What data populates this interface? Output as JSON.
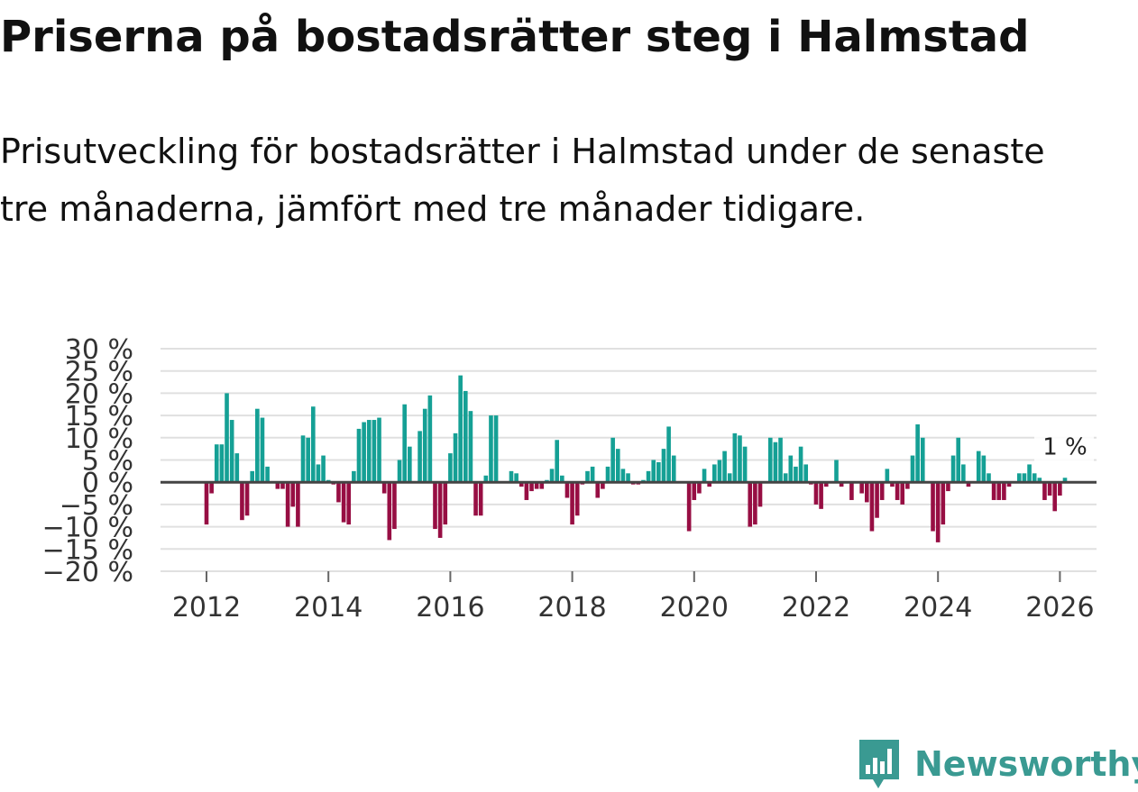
{
  "title": "Priserna på bostadsrätter steg i Halmstad",
  "subtitle": "Prisutveckling för bostadsrätter i Halmstad under de senaste tre månaderna, jämfört med tre månader tidigare.",
  "brand": {
    "name": "Newsworthy",
    "icon": "newsworthy-logo-icon"
  },
  "colors": {
    "positive": "#15a095",
    "negative": "#970e43",
    "grid": "#e0e0e0",
    "zero": "#444444",
    "brand": "#3a9a92"
  },
  "chart_data": {
    "type": "bar",
    "title": "Priserna på bostadsrätter steg i Halmstad",
    "xlabel": "",
    "ylabel": "",
    "x_unit": "year",
    "start": 2012.0,
    "step": 0.08333,
    "ylim": [
      -20,
      30
    ],
    "y_ticks": [
      30,
      25,
      20,
      15,
      10,
      5,
      0,
      -5,
      -10,
      -15,
      -20
    ],
    "y_tick_labels": [
      "30 %",
      "25 %",
      "20 %",
      "15 %",
      "10 %",
      "5 %",
      "0 %",
      "−5 %",
      "−10 %",
      "−15 %",
      "−20 %"
    ],
    "x_ticks": [
      2012,
      2014,
      2016,
      2018,
      2020,
      2022,
      2024,
      2026
    ],
    "x_tick_labels": [
      "2012",
      "2014",
      "2016",
      "2018",
      "2020",
      "2022",
      "2024",
      "2026"
    ],
    "last_label": "1 %",
    "values": [
      -9.5,
      -2.5,
      8.5,
      8.5,
      20,
      14,
      6.5,
      -8.5,
      -7.5,
      2.5,
      16.5,
      14.5,
      3.5,
      0,
      -1.5,
      -1.5,
      -10,
      -5.5,
      -10,
      10.5,
      10,
      17,
      4,
      6,
      0.5,
      -0.5,
      -4.5,
      -9,
      -9.5,
      2.5,
      12,
      13.5,
      14,
      14,
      14.5,
      -2.5,
      -13,
      -10.5,
      5,
      17.5,
      8,
      0,
      11.5,
      16.5,
      19.5,
      -10.5,
      -12.5,
      -9.5,
      6.5,
      11,
      24,
      20.5,
      16,
      -7.5,
      -7.5,
      1.5,
      15,
      15,
      0,
      0,
      2.5,
      2,
      -1,
      -4,
      -2,
      -1.5,
      -1.5,
      0.5,
      3,
      9.5,
      1.5,
      -3.5,
      -9.5,
      -7.5,
      -0.5,
      2.5,
      3.5,
      -3.5,
      -1.5,
      3.5,
      10,
      7.5,
      3,
      2,
      -0.5,
      -0.5,
      0.5,
      2.5,
      5,
      4.5,
      7.5,
      12.5,
      6,
      0,
      0,
      -11,
      -4,
      -2.5,
      3,
      -1,
      4,
      5,
      7,
      2,
      11,
      10.5,
      8,
      -10,
      -9.5,
      -5.5,
      0,
      10,
      9,
      10,
      2,
      6,
      3.5,
      8,
      4,
      -0.5,
      -5,
      -6,
      -1,
      0,
      5,
      -1,
      0,
      -4,
      0,
      -2.5,
      -4.5,
      -11,
      -8,
      -4,
      3,
      -1,
      -4,
      -5,
      -1.5,
      6,
      13,
      10,
      0,
      -11,
      -13.5,
      -9.5,
      -2,
      6,
      10,
      4,
      -1,
      0,
      7,
      6,
      2,
      -4,
      -4,
      -4,
      -1,
      0,
      2,
      2,
      4,
      2,
      1,
      -4,
      -3,
      -6.5,
      -3,
      1
    ]
  }
}
